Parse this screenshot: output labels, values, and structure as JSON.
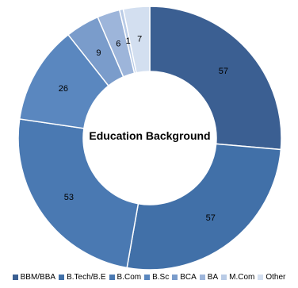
{
  "chart_data": {
    "type": "pie",
    "variant": "donut",
    "title": "Education Background",
    "categories": [
      "BBM/BBA",
      "B.Tech/B.E",
      "B.Com",
      "B.Sc",
      "BCA",
      "BA",
      "M.Com",
      "Other"
    ],
    "values": [
      57,
      57,
      53,
      26,
      9,
      6,
      1,
      7
    ],
    "colors": [
      "#3b5f92",
      "#4170a8",
      "#4a79b2",
      "#5a87bf",
      "#7a9ccb",
      "#9db5da",
      "#b9cbe6",
      "#d3dff0"
    ],
    "legend_position": "bottom"
  }
}
